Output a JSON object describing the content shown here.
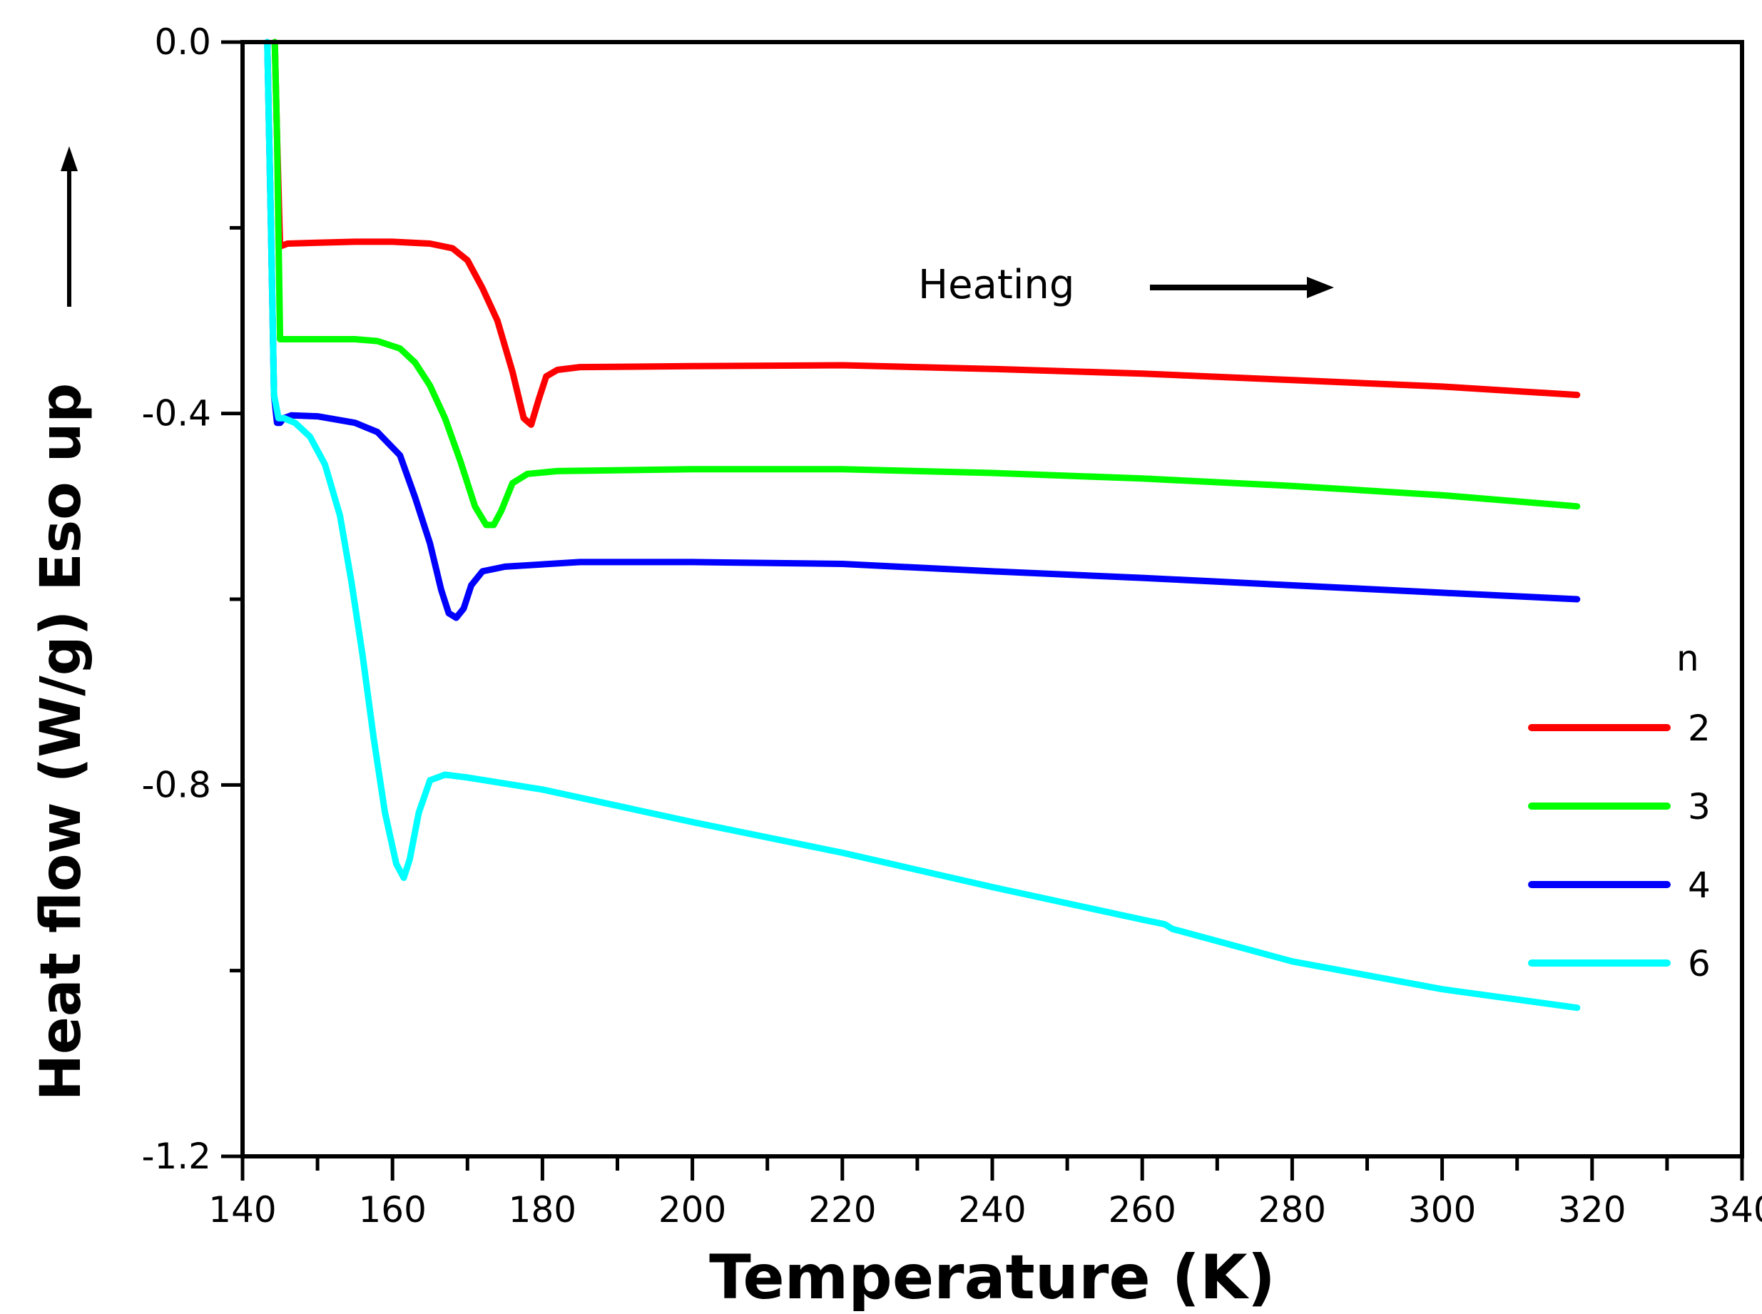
{
  "chart_data": {
    "type": "line",
    "title": "",
    "xlabel": "Temperature (K)",
    "ylabel": "Heat flow (W/g) Eso up",
    "xlim": [
      140,
      340
    ],
    "ylim": [
      -1.2,
      0.0
    ],
    "xticks": [
      140,
      160,
      180,
      200,
      220,
      240,
      260,
      280,
      300,
      320,
      340
    ],
    "xtick_labels": [
      "140",
      "160",
      "180",
      "200",
      "220",
      "240",
      "260",
      "280",
      "300",
      "320",
      "340"
    ],
    "yticks": [
      0.0,
      -0.4,
      -0.8,
      -1.2
    ],
    "ytick_labels": [
      "0.0",
      "-0.4",
      "-0.8",
      "-1.2"
    ],
    "grid": false,
    "annotation": "Heating",
    "legend_title": "n",
    "legend_position": "right-middle",
    "series": [
      {
        "name": "2",
        "color": "#ff0000",
        "x": [
          144.3,
          144.6,
          145,
          146,
          150,
          155,
          160,
          165,
          168,
          170,
          172,
          174,
          176,
          177.5,
          178.5,
          179.5,
          180.5,
          182,
          185,
          200,
          220,
          240,
          260,
          280,
          300,
          318
        ],
        "y": [
          0.0,
          -0.1,
          -0.22,
          -0.217,
          -0.216,
          -0.215,
          -0.215,
          -0.217,
          -0.222,
          -0.235,
          -0.265,
          -0.3,
          -0.355,
          -0.405,
          -0.412,
          -0.385,
          -0.36,
          -0.353,
          -0.35,
          -0.349,
          -0.348,
          -0.352,
          -0.357,
          -0.364,
          -0.371,
          -0.38
        ]
      },
      {
        "name": "3",
        "color": "#00ff00",
        "x": [
          144.3,
          144.6,
          145,
          146,
          150,
          155,
          158,
          161,
          163,
          165,
          167,
          169,
          171,
          172.5,
          173.5,
          174.5,
          176,
          178,
          182,
          200,
          220,
          240,
          260,
          280,
          300,
          318
        ],
        "y": [
          0.0,
          -0.1,
          -0.32,
          -0.32,
          -0.32,
          -0.32,
          -0.322,
          -0.33,
          -0.345,
          -0.37,
          -0.405,
          -0.45,
          -0.5,
          -0.52,
          -0.52,
          -0.505,
          -0.475,
          -0.465,
          -0.462,
          -0.46,
          -0.46,
          -0.464,
          -0.47,
          -0.478,
          -0.488,
          -0.5
        ]
      },
      {
        "name": "4",
        "color": "#0000ff",
        "x": [
          143.3,
          143.8,
          144.2,
          144.6,
          145,
          145.5,
          146.5,
          150,
          155,
          158,
          161,
          163,
          165,
          166.5,
          167.5,
          168.5,
          169.5,
          170.5,
          172,
          175,
          185,
          200,
          220,
          240,
          260,
          280,
          300,
          318
        ],
        "y": [
          0.0,
          -0.2,
          -0.38,
          -0.41,
          -0.41,
          -0.405,
          -0.402,
          -0.403,
          -0.41,
          -0.42,
          -0.445,
          -0.49,
          -0.54,
          -0.59,
          -0.615,
          -0.62,
          -0.61,
          -0.585,
          -0.57,
          -0.565,
          -0.56,
          -0.56,
          -0.562,
          -0.57,
          -0.577,
          -0.585,
          -0.593,
          -0.6
        ]
      },
      {
        "name": "6",
        "color": "#00ffff",
        "x": [
          143.3,
          143.8,
          144.2,
          144.8,
          145.5,
          147,
          149,
          151,
          153,
          154.5,
          156,
          157.5,
          159,
          160.5,
          161.5,
          162.3,
          163.5,
          165,
          167,
          170,
          180,
          200,
          220,
          240,
          260,
          263,
          264,
          280,
          300,
          318
        ],
        "y": [
          0.0,
          -0.2,
          -0.38,
          -0.405,
          -0.405,
          -0.41,
          -0.425,
          -0.455,
          -0.51,
          -0.58,
          -0.66,
          -0.75,
          -0.83,
          -0.885,
          -0.9,
          -0.88,
          -0.83,
          -0.795,
          -0.789,
          -0.792,
          -0.805,
          -0.84,
          -0.873,
          -0.91,
          -0.945,
          -0.95,
          -0.955,
          -0.99,
          -1.02,
          -1.04
        ]
      }
    ]
  }
}
